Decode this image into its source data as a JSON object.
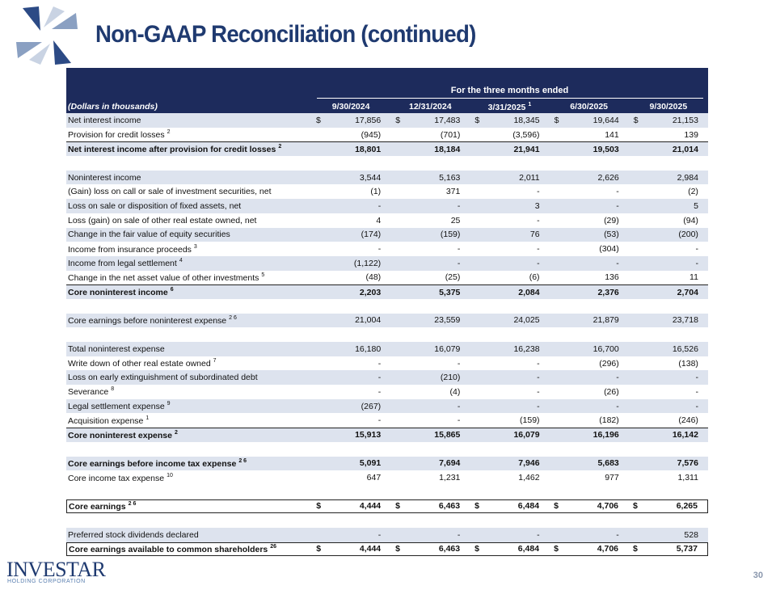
{
  "title": "Non-GAAP Reconciliation (continued)",
  "table": {
    "group_header": "For the three months ended",
    "unit_label": "(Dollars in thousands)",
    "columns": [
      {
        "label": "9/30/2024"
      },
      {
        "label": "12/31/2024"
      },
      {
        "label": "3/31/2025",
        "sup": "1"
      },
      {
        "label": "6/30/2025"
      },
      {
        "label": "9/30/2025"
      }
    ],
    "sections": [
      [
        {
          "label": "Net interest income",
          "currency": "$",
          "values": [
            "17,856",
            "17,483",
            "18,345",
            "19,644",
            "21,153"
          ]
        },
        {
          "label": "Provision for credit losses",
          "sup": "2",
          "values": [
            "(945)",
            "(701)",
            "(3,596)",
            "141",
            "139"
          ]
        },
        {
          "label": "Net interest income after provision for credit losses",
          "sup": "2",
          "bold": true,
          "values": [
            "18,801",
            "18,184",
            "21,941",
            "19,503",
            "21,014"
          ]
        }
      ],
      [
        {
          "label": "Noninterest income",
          "values": [
            "3,544",
            "5,163",
            "2,011",
            "2,626",
            "2,984"
          ]
        },
        {
          "label": "(Gain) loss on call or sale of investment securities, net",
          "values": [
            "(1)",
            "371",
            "-",
            "-",
            "(2)"
          ]
        },
        {
          "label": "Loss on sale or disposition of fixed assets, net",
          "values": [
            "-",
            "-",
            "3",
            "-",
            "5"
          ]
        },
        {
          "label": "Loss (gain) on sale of other real estate owned, net",
          "values": [
            "4",
            "25",
            "-",
            "(29)",
            "(94)"
          ]
        },
        {
          "label": "Change in the fair value of equity securities",
          "values": [
            "(174)",
            "(159)",
            "76",
            "(53)",
            "(200)"
          ]
        },
        {
          "label": "Income from insurance proceeds",
          "sup": "3",
          "values": [
            "-",
            "-",
            "-",
            "(304)",
            "-"
          ]
        },
        {
          "label": "Income from legal settlement",
          "sup": "4",
          "values": [
            "(1,122)",
            "-",
            "-",
            "-",
            "-"
          ]
        },
        {
          "label": "Change in the net asset value of other investments",
          "sup": "5",
          "values": [
            "(48)",
            "(25)",
            "(6)",
            "136",
            "11"
          ]
        },
        {
          "label": "Core noninterest income",
          "sup": "6",
          "bold": true,
          "values": [
            "2,203",
            "5,375",
            "2,084",
            "2,376",
            "2,704"
          ]
        }
      ],
      [
        {
          "label": "Core earnings before noninterest expense",
          "sup": "2 6",
          "values": [
            "21,004",
            "23,559",
            "24,025",
            "21,879",
            "23,718"
          ]
        }
      ],
      [
        {
          "label": "Total noninterest expense",
          "values": [
            "16,180",
            "16,079",
            "16,238",
            "16,700",
            "16,526"
          ]
        },
        {
          "label": "Write down of other real estate owned",
          "sup": "7",
          "values": [
            "-",
            "-",
            "-",
            "(296)",
            "(138)"
          ]
        },
        {
          "label": "Loss on early extinguishment of subordinated debt",
          "values": [
            "-",
            "(210)",
            "-",
            "-",
            "-"
          ]
        },
        {
          "label": "Severance",
          "sup": "8",
          "values": [
            "-",
            "(4)",
            "-",
            "(26)",
            "-"
          ]
        },
        {
          "label": "Legal settlement expense",
          "sup": "9",
          "values": [
            "(267)",
            "-",
            "-",
            "-",
            "-"
          ]
        },
        {
          "label": "Acquisition expense",
          "sup": "1",
          "values": [
            "-",
            "-",
            "(159)",
            "(182)",
            "(246)"
          ]
        },
        {
          "label": "Core noninterest expense",
          "sup": "2",
          "bold": true,
          "values": [
            "15,913",
            "15,865",
            "16,079",
            "16,196",
            "16,142"
          ]
        }
      ],
      [
        {
          "label": "Core earnings before income tax expense",
          "sup": "2 6",
          "bold": true,
          "values": [
            "5,091",
            "7,694",
            "7,946",
            "5,683",
            "7,576"
          ]
        },
        {
          "label": "Core income tax expense",
          "sup": "10",
          "values": [
            "647",
            "1,231",
            "1,462",
            "977",
            "1,311"
          ]
        }
      ],
      [
        {
          "label": "Core earnings",
          "sup": "2 6",
          "bold": true,
          "boxed": true,
          "currency": "$",
          "values": [
            "4,444",
            "6,463",
            "6,484",
            "4,706",
            "6,265"
          ]
        }
      ],
      [
        {
          "label": "Preferred stock dividends declared",
          "values": [
            "-",
            "-",
            "-",
            "-",
            "528"
          ]
        },
        {
          "label": "Core earnings available to common shareholders",
          "sup": "26",
          "bold": true,
          "boxed": true,
          "currency": "$",
          "values": [
            "4,444",
            "6,463",
            "6,484",
            "4,706",
            "5,737"
          ]
        }
      ]
    ]
  },
  "footer": {
    "brand": "INVESTAR",
    "brand_sub": "HOLDING CORPORATION",
    "page_number": "30"
  }
}
